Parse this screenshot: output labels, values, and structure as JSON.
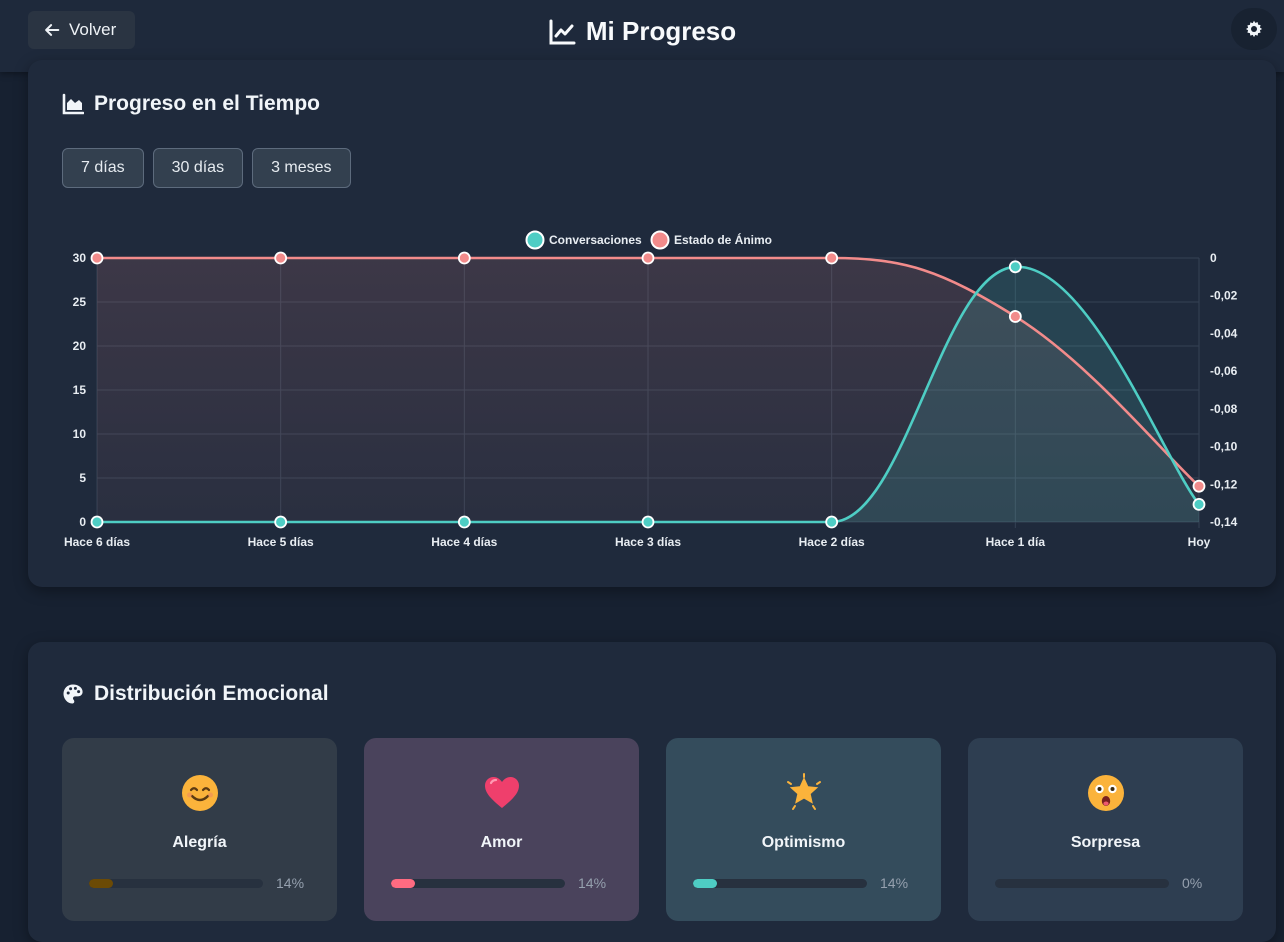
{
  "header": {
    "back_label": "Volver",
    "title": "Mi Progreso"
  },
  "progress": {
    "title": "Progreso en el Tiempo",
    "ranges": [
      "7 días",
      "30 días",
      "3 meses"
    ]
  },
  "chart_data": {
    "type": "line",
    "categories": [
      "Hace 6 días",
      "Hace 5 días",
      "Hace 4 días",
      "Hace 3 días",
      "Hace 2 días",
      "Hace 1 día",
      "Hoy"
    ],
    "series": [
      {
        "name": "Conversaciones",
        "axis": "left",
        "color": "#4ecdc4",
        "values": [
          0,
          0,
          0,
          0,
          0,
          29,
          2
        ]
      },
      {
        "name": "Estado de Ánimo",
        "axis": "right",
        "color": "#f28b8b",
        "values": [
          0,
          0,
          0,
          0,
          0,
          -0.031,
          -0.121
        ]
      }
    ],
    "y_left": {
      "min": 0,
      "max": 30,
      "ticks": [
        "30",
        "25",
        "20",
        "15",
        "10",
        "5",
        "0"
      ]
    },
    "y_right": {
      "min": -0.14,
      "max": 0,
      "ticks": [
        "0",
        "-0,02",
        "-0,04",
        "-0,06",
        "-0,08",
        "-0,10",
        "-0,12",
        "-0,14"
      ]
    },
    "legend": "top-center",
    "grid": true
  },
  "emotions": {
    "title": "Distribución Emocional",
    "items": [
      {
        "name": "Alegría",
        "percent": "14%",
        "value": 0.14,
        "emoji": "smiling-face-icon",
        "bar_color": "#6b4a05",
        "bg": "#323c48"
      },
      {
        "name": "Amor",
        "percent": "14%",
        "value": 0.14,
        "emoji": "heart-icon",
        "bar_color": "#ff6b81",
        "bg": "#4a435c"
      },
      {
        "name": "Optimismo",
        "percent": "14%",
        "value": 0.14,
        "emoji": "star-icon",
        "bar_color": "#4ecdc4",
        "bg": "#344c5c"
      },
      {
        "name": "Sorpresa",
        "percent": "0%",
        "value": 0,
        "emoji": "surprised-face-icon",
        "bar_color": "#9aa6b4",
        "bg": "#2e3e51"
      }
    ]
  }
}
